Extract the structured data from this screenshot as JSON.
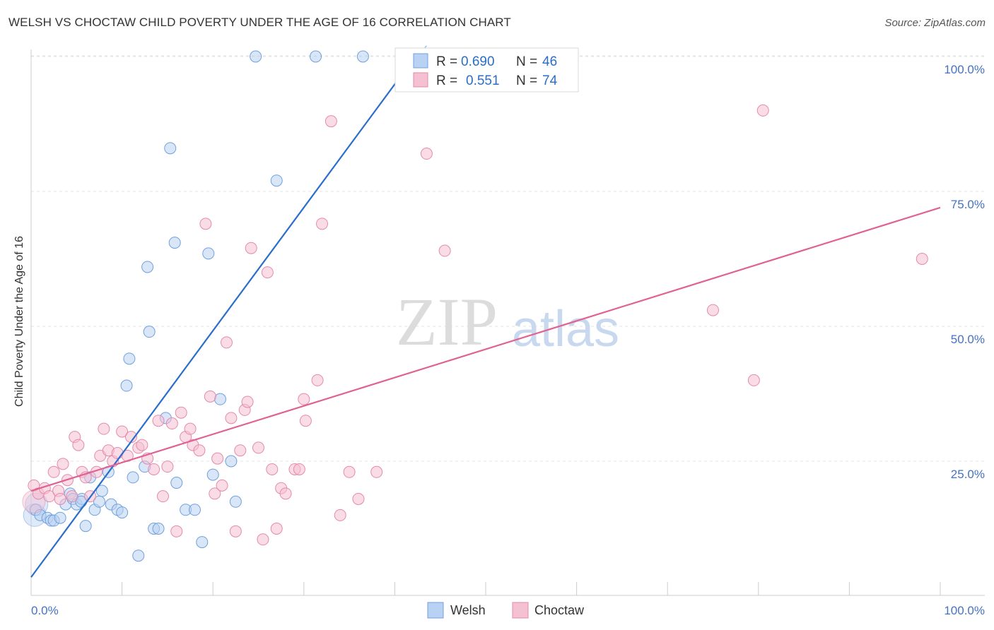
{
  "chart_data": {
    "type": "scatter",
    "title": "WELSH VS CHOCTAW CHILD POVERTY UNDER THE AGE OF 16 CORRELATION CHART",
    "source": "Source: ZipAtlas.com",
    "ylabel": "Child Poverty Under the Age of 16",
    "xlabel": "",
    "xlim": [
      0,
      100
    ],
    "ylim": [
      0,
      104
    ],
    "x_tick_labels": {
      "left": "0.0%",
      "right": "100.0%"
    },
    "y_ticks": [
      {
        "value": 25,
        "label": "25.0%"
      },
      {
        "value": 50,
        "label": "50.0%"
      },
      {
        "value": 75,
        "label": "75.0%"
      },
      {
        "value": 100,
        "label": "100.0%"
      }
    ],
    "grid": true,
    "watermark": {
      "zip": "ZIP",
      "atlas": "atlas"
    },
    "legend": {
      "position": "top-center",
      "rows": [
        {
          "r_label": "R =",
          "r_value": "0.690",
          "n_label": "N =",
          "n_value": "46"
        },
        {
          "r_label": "R =",
          "r_value": "0.551",
          "n_label": "N =",
          "n_value": "74"
        }
      ]
    },
    "series": [
      {
        "name": "Welsh",
        "color": "#6fa0dc",
        "fill": "#b9d1f2",
        "line_color": "#2a6ecb",
        "trend": {
          "x0": 0,
          "y0": 3.5,
          "x1": 40.5,
          "y1": 96
        },
        "trend_dashed": {
          "x0": 40.5,
          "y0": 96,
          "x1": 43.5,
          "y1": 102
        },
        "points": [
          [
            0.5,
            16
          ],
          [
            1,
            15
          ],
          [
            1.8,
            14.5
          ],
          [
            2.2,
            14
          ],
          [
            2.5,
            14
          ],
          [
            3.2,
            14.5
          ],
          [
            3.8,
            17
          ],
          [
            4.3,
            19
          ],
          [
            4.6,
            18
          ],
          [
            5,
            17
          ],
          [
            5.6,
            18
          ],
          [
            5.5,
            17.5
          ],
          [
            6,
            13
          ],
          [
            6.5,
            22
          ],
          [
            7,
            16
          ],
          [
            7.5,
            17.5
          ],
          [
            7.8,
            19.5
          ],
          [
            8.5,
            23
          ],
          [
            8.8,
            17
          ],
          [
            9.5,
            16
          ],
          [
            10,
            15.5
          ],
          [
            10.5,
            39
          ],
          [
            10.8,
            44
          ],
          [
            11.2,
            22
          ],
          [
            11.8,
            7.5
          ],
          [
            12.5,
            24
          ],
          [
            12.8,
            61
          ],
          [
            13,
            49
          ],
          [
            13.5,
            12.5
          ],
          [
            14,
            12.5
          ],
          [
            14.8,
            33
          ],
          [
            15.3,
            83
          ],
          [
            15.8,
            65.5
          ],
          [
            16,
            21
          ],
          [
            17,
            16
          ],
          [
            18,
            16
          ],
          [
            18.8,
            10
          ],
          [
            19.5,
            63.5
          ],
          [
            20,
            22.5
          ],
          [
            20.8,
            36.5
          ],
          [
            22,
            25
          ],
          [
            22.5,
            17.5
          ],
          [
            24.7,
            100
          ],
          [
            27,
            77
          ],
          [
            31.3,
            100
          ],
          [
            36.5,
            100
          ]
        ],
        "big_points": [
          [
            0.4,
            15
          ],
          [
            0.6,
            17
          ]
        ]
      },
      {
        "name": "Choctaw",
        "color": "#e48aaa",
        "fill": "#f5c0d2",
        "line_color": "#e06292",
        "trend": {
          "x0": 0,
          "y0": 19.5,
          "x1": 100,
          "y1": 72
        },
        "points": [
          [
            0.3,
            20.5
          ],
          [
            0.8,
            19
          ],
          [
            1.5,
            20
          ],
          [
            2,
            18.5
          ],
          [
            2.5,
            23
          ],
          [
            3,
            19.5
          ],
          [
            3.2,
            18
          ],
          [
            3.5,
            24.5
          ],
          [
            4,
            21.5
          ],
          [
            4.5,
            18.5
          ],
          [
            4.8,
            29.5
          ],
          [
            5.2,
            28
          ],
          [
            5.6,
            23
          ],
          [
            6,
            22
          ],
          [
            6.5,
            18.5
          ],
          [
            7.2,
            23
          ],
          [
            7.6,
            26
          ],
          [
            8,
            31
          ],
          [
            8.5,
            27
          ],
          [
            9,
            25
          ],
          [
            9.5,
            26.5
          ],
          [
            10,
            30.5
          ],
          [
            10.6,
            26
          ],
          [
            11,
            29.5
          ],
          [
            11.8,
            27.5
          ],
          [
            12.2,
            28
          ],
          [
            12.8,
            25.5
          ],
          [
            13.5,
            23.5
          ],
          [
            14,
            32.5
          ],
          [
            14.5,
            18.5
          ],
          [
            15,
            24
          ],
          [
            15.5,
            32
          ],
          [
            16,
            12
          ],
          [
            16.5,
            34
          ],
          [
            17,
            29.5
          ],
          [
            17.5,
            31
          ],
          [
            17.8,
            28
          ],
          [
            18.5,
            27
          ],
          [
            19.2,
            69
          ],
          [
            19.7,
            37
          ],
          [
            20.2,
            19
          ],
          [
            20.5,
            25.5
          ],
          [
            21,
            20.5
          ],
          [
            21.5,
            47
          ],
          [
            22,
            33
          ],
          [
            22.5,
            12
          ],
          [
            23,
            27
          ],
          [
            23.5,
            34.5
          ],
          [
            23.8,
            36
          ],
          [
            24.2,
            64.5
          ],
          [
            25,
            27.5
          ],
          [
            25.5,
            10.5
          ],
          [
            26,
            60
          ],
          [
            26.5,
            23.5
          ],
          [
            27,
            12.5
          ],
          [
            27.5,
            20
          ],
          [
            28,
            19
          ],
          [
            29,
            23.5
          ],
          [
            29.5,
            23.5
          ],
          [
            30,
            36.5
          ],
          [
            30.2,
            32.5
          ],
          [
            31.5,
            40
          ],
          [
            32,
            69
          ],
          [
            33,
            88
          ],
          [
            34,
            15
          ],
          [
            35,
            23
          ],
          [
            36,
            18
          ],
          [
            38,
            23
          ],
          [
            43.5,
            82
          ],
          [
            45.5,
            64
          ],
          [
            75,
            53
          ],
          [
            79.5,
            40
          ],
          [
            80.5,
            90
          ],
          [
            98,
            62.5
          ]
        ],
        "big_points": [
          [
            0.3,
            17.5
          ]
        ]
      }
    ],
    "bottom_legend": [
      "Welsh",
      "Choctaw"
    ]
  }
}
